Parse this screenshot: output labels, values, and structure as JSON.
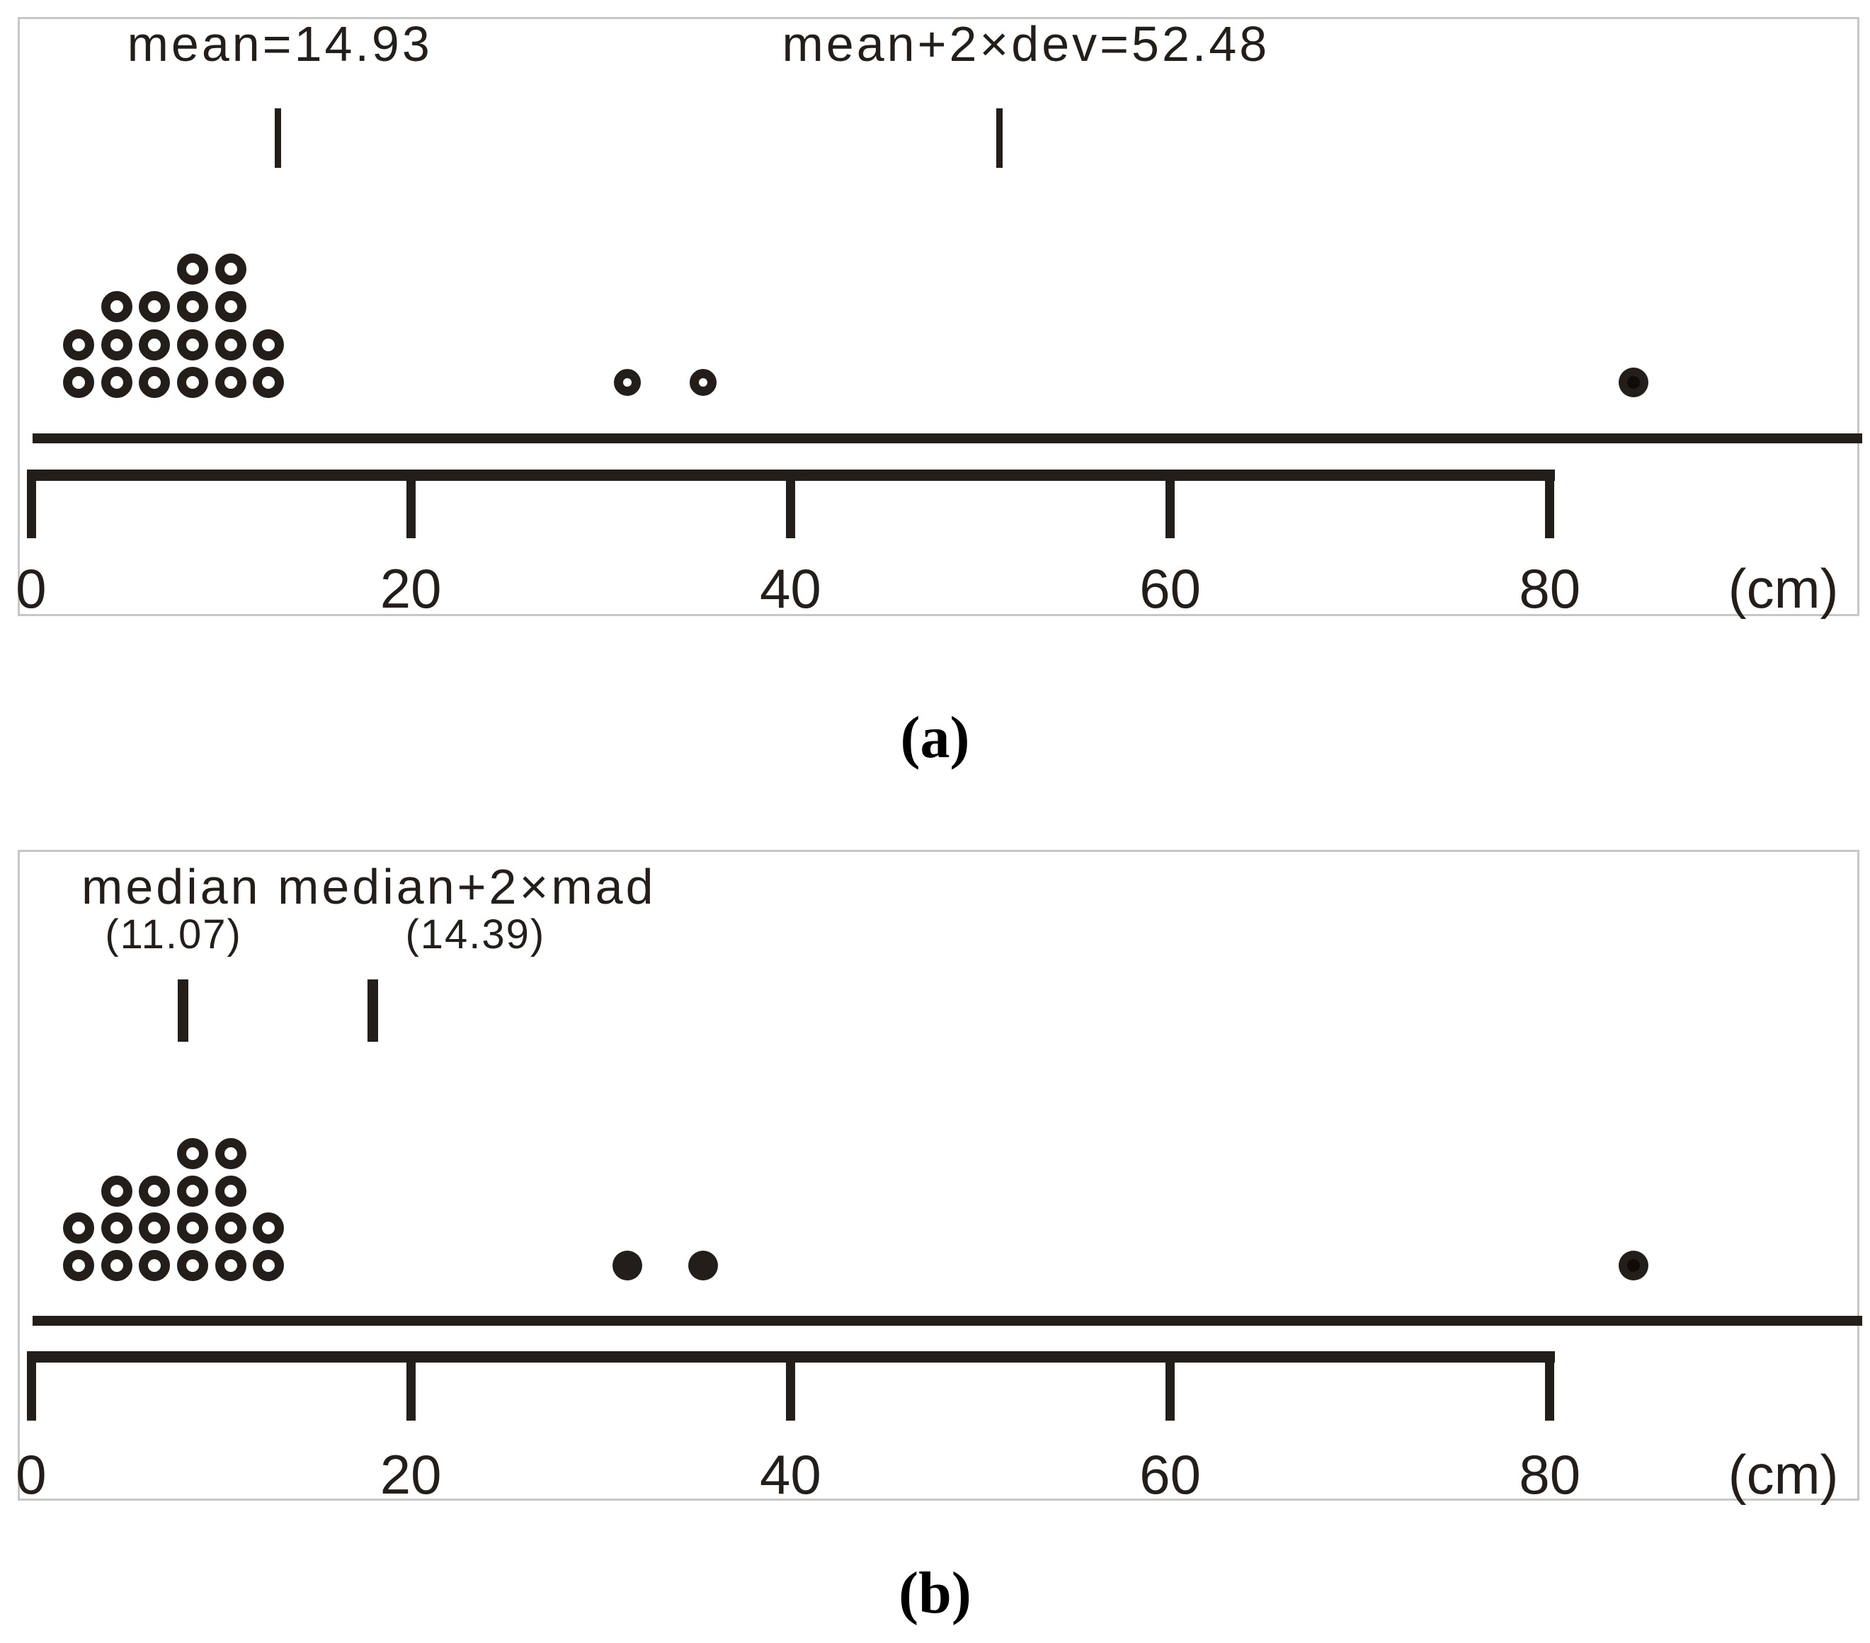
{
  "colors": {
    "ink": "#241e1a",
    "panel_border": "#c7c7c7",
    "background": "#ffffff"
  },
  "captions": {
    "a": "(a)",
    "b": "(b)"
  },
  "axis": {
    "unit": "(cm)",
    "unit_anchor_cm": 92.3,
    "tick_values": [
      0,
      20,
      40,
      60,
      80
    ],
    "tick_labels": [
      "0",
      "20",
      "40",
      "60",
      "80"
    ],
    "min": 0,
    "max": 80
  },
  "chart_data": [
    {
      "type": "dotplot",
      "panel": "a",
      "total_points": 21,
      "annotations": [
        {
          "text": "mean=14.93",
          "value": 14.93,
          "row": "title",
          "align": "center",
          "anchor_cm": 13.1,
          "tick_at_cm": 13.0
        },
        {
          "text": "mean+2×dev=52.48",
          "value": 52.48,
          "row": "title",
          "align": "center",
          "anchor_cm": 52.4,
          "tick_at_cm": 51.0
        }
      ],
      "stacks": [
        {
          "x_cm": 2.5,
          "count": 2
        },
        {
          "x_cm": 4.5,
          "count": 3
        },
        {
          "x_cm": 6.5,
          "count": 3
        },
        {
          "x_cm": 8.5,
          "count": 4
        },
        {
          "x_cm": 10.5,
          "count": 4
        },
        {
          "x_cm": 12.5,
          "count": 2
        }
      ],
      "stack_style": "open",
      "singles": [
        {
          "x_cm": 31.4,
          "style": "open-small"
        },
        {
          "x_cm": 35.4,
          "style": "open-small"
        },
        {
          "x_cm": 84.4,
          "style": "filled-core"
        }
      ]
    },
    {
      "type": "dotplot",
      "panel": "b",
      "total_points": 21,
      "annotations": [
        {
          "text": "median median+2×mad",
          "row": "title",
          "align": "left",
          "anchor_cm": 2.65
        },
        {
          "text": "(11.07)",
          "value": 11.07,
          "row": "sub",
          "align": "center",
          "anchor_cm": 7.5,
          "tick_at_cm": 8.0
        },
        {
          "text": "(14.39)",
          "value": 14.39,
          "row": "sub",
          "align": "center",
          "anchor_cm": 23.4,
          "tick_at_cm": 18.0
        }
      ],
      "stacks": [
        {
          "x_cm": 2.5,
          "count": 2
        },
        {
          "x_cm": 4.5,
          "count": 3
        },
        {
          "x_cm": 6.5,
          "count": 3
        },
        {
          "x_cm": 8.5,
          "count": 4
        },
        {
          "x_cm": 10.5,
          "count": 4
        },
        {
          "x_cm": 12.5,
          "count": 2
        }
      ],
      "stack_style": "open",
      "singles": [
        {
          "x_cm": 31.4,
          "style": "filled"
        },
        {
          "x_cm": 35.4,
          "style": "filled"
        },
        {
          "x_cm": 84.4,
          "style": "filled-core"
        }
      ]
    }
  ]
}
